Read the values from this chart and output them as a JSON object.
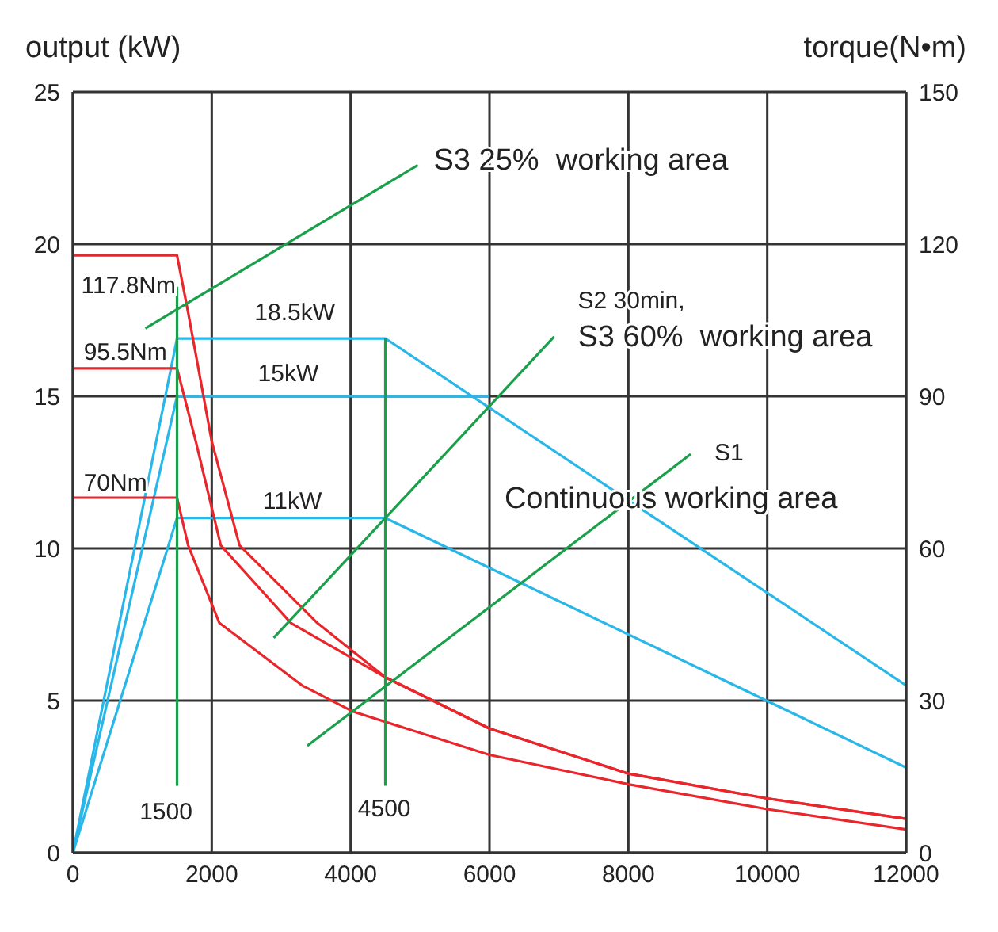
{
  "chart_data": {
    "type": "line",
    "ylabel": "output (kW)",
    "y2label": "torque(N•m)",
    "xlim": [
      0,
      12000
    ],
    "xticks": [
      0,
      2000,
      4000,
      6000,
      8000,
      10000,
      12000
    ],
    "ylim": [
      0,
      25
    ],
    "yticks": [
      0,
      5,
      10,
      15,
      20,
      25
    ],
    "y2lim": [
      0,
      150
    ],
    "y2ticks": [
      0,
      30,
      60,
      90,
      120,
      150
    ],
    "grid": true,
    "marker": "none",
    "line_style": "solid",
    "series": [
      {
        "type": "line",
        "color": "#29b6e8",
        "x": [
          0,
          1500,
          4500,
          12000
        ],
        "values": [
          0,
          16.9,
          16.9,
          5.5
        ]
      },
      {
        "type": "line",
        "color": "#29b6e8",
        "x": [
          0,
          1500,
          6000
        ],
        "values": [
          0,
          15,
          15
        ]
      },
      {
        "type": "line",
        "color": "#29b6e8",
        "x": [
          0,
          1500,
          4500,
          12000
        ],
        "values": [
          0,
          11,
          11,
          2.8
        ]
      },
      {
        "type": "line",
        "color": "#e8262b",
        "axis": "y2",
        "x": [
          0,
          1500,
          1660,
          2000,
          2400,
          3520,
          4500,
          6000,
          8000,
          10000,
          12000
        ],
        "values": [
          117.8,
          117.8,
          106.5,
          81.1,
          60.6,
          45.3,
          34.6,
          24.5,
          15.6,
          10.7,
          6.7
        ]
      },
      {
        "type": "line",
        "color": "#e8262b",
        "axis": "y2",
        "x": [
          0,
          1500,
          1770,
          2130,
          3140,
          4500,
          6000,
          8000,
          10000,
          12000
        ],
        "values": [
          95.5,
          95.5,
          81.1,
          60.6,
          45.3,
          34.6,
          24.5,
          15.6,
          10.7,
          6.7
        ]
      },
      {
        "type": "line",
        "color": "#e8262b",
        "axis": "y2",
        "x": [
          0,
          1500,
          1660,
          2110,
          3300,
          4040,
          6000,
          8000,
          10000,
          12000
        ],
        "values": [
          70,
          70,
          60.6,
          45.3,
          33,
          27.8,
          19.3,
          13.5,
          8.6,
          4.6
        ]
      },
      {
        "type": "line",
        "color": "#1aa04a",
        "x": [
          1500,
          1500
        ],
        "values": [
          18.6,
          2.2
        ]
      },
      {
        "type": "line",
        "color": "#1aa04a",
        "x": [
          4500,
          4500
        ],
        "values": [
          16.9,
          2.2
        ]
      }
    ],
    "annotations": [
      "117.8Nm",
      "95.5Nm",
      "70Nm",
      "18.5kW",
      "15kW",
      "11kW",
      "1500",
      "4500",
      "S3 25%  working area",
      "S2 30min,",
      "S3 60%  working area",
      "S1",
      "Continuous working area"
    ]
  }
}
